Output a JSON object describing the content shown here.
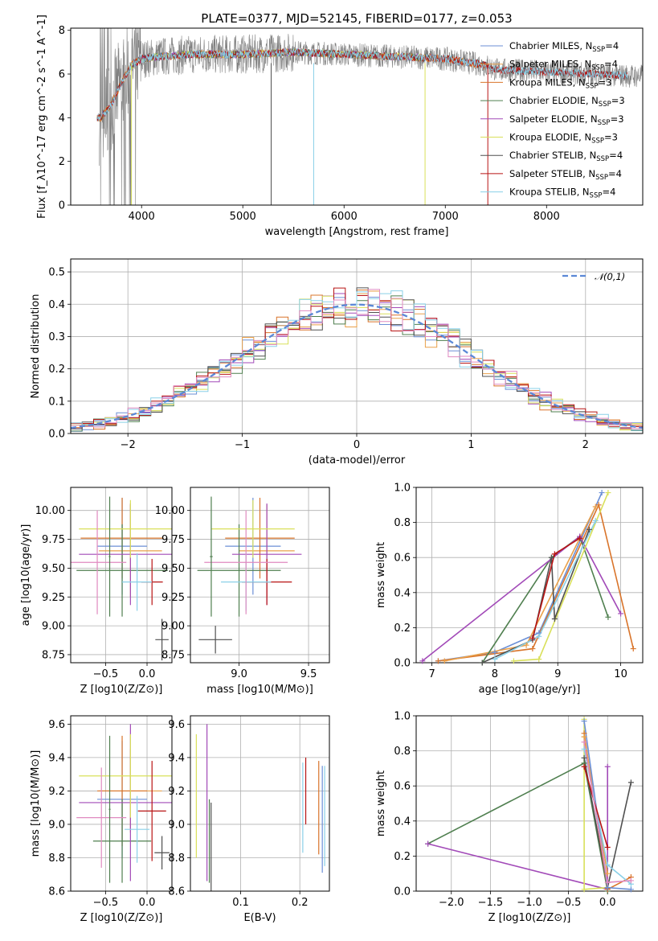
{
  "figure": {
    "title": "PLATE=0377, MJD=52145, FIBERID=0177, z=0.053"
  },
  "colors": {
    "Chabrier MILES": "#6b8fd6",
    "Salpeter MILES": "#e9a04a",
    "Kroupa MILES": "#d9742a",
    "Chabrier ELODIE": "#4f7f4f",
    "Salpeter ELODIE": "#a24ab8",
    "Kroupa ELODIE": "#d9e05a",
    "Chabrier STELIB": "#505050",
    "Salpeter STELIB": "#b81414",
    "Kroupa STELIB": "#8ad0e8",
    "data": "#808080",
    "gauss": "#5b88d6",
    "pink": "#e08ac0"
  },
  "chart_data": [
    {
      "id": "spectrum",
      "type": "line",
      "xlabel": "wavelength [Angstrom, rest frame]",
      "ylabel": "Flux [f_λ10^-17 erg cm^-2 s^-1 A^-1]",
      "xlim": [
        3300,
        8950
      ],
      "ylim": [
        0,
        8.1
      ],
      "xticks": [
        4000,
        5000,
        6000,
        7000,
        8000
      ],
      "yticks": [
        0,
        2,
        4,
        6,
        8
      ],
      "legend_position": "upper right",
      "legend": [
        {
          "name": "Chabrier MILES",
          "nssp": "4"
        },
        {
          "name": "Salpeter MILES",
          "nssp": "4"
        },
        {
          "name": "Kroupa MILES",
          "nssp": "3"
        },
        {
          "name": "Chabrier ELODIE",
          "nssp": "3"
        },
        {
          "name": "Salpeter ELODIE",
          "nssp": "3"
        },
        {
          "name": "Kroupa ELODIE",
          "nssp": "3"
        },
        {
          "name": "Chabrier STELIB",
          "nssp": "4"
        },
        {
          "name": "Salpeter STELIB",
          "nssp": "4"
        },
        {
          "name": "Kroupa STELIB",
          "nssp": "4"
        }
      ],
      "continuum": {
        "x": [
          3600,
          3700,
          3800,
          3900,
          4000,
          4200,
          4500,
          5000,
          5500,
          6000,
          6500,
          7000,
          7400,
          7500,
          8000,
          8500,
          8900
        ],
        "y": [
          4.0,
          4.6,
          5.6,
          6.4,
          6.7,
          6.8,
          6.9,
          6.9,
          7.0,
          6.9,
          6.8,
          6.7,
          6.4,
          6.2,
          6.1,
          6.0,
          5.9
        ]
      }
    },
    {
      "id": "residuals",
      "type": "histogram",
      "xlabel": "(data-model)/error",
      "ylabel": "Normed distribution",
      "xlim": [
        -2.5,
        2.5
      ],
      "ylim": [
        0,
        0.54
      ],
      "xticks": [
        -2,
        -1,
        0,
        1,
        2
      ],
      "yticks": [
        0.0,
        0.1,
        0.2,
        0.3,
        0.4,
        0.5
      ],
      "legend": [
        {
          "name": "𝒩(0,1)"
        }
      ],
      "legend_position": "upper right",
      "bin_width": 0.1
    },
    {
      "id": "age_vs_Z",
      "type": "errorbar",
      "xlabel": "Z [log10(Z/Z⊙)]",
      "ylabel": "age  [log10(age/yr)]",
      "xlim": [
        -0.92,
        0.3
      ],
      "ylim": [
        8.68,
        10.2
      ],
      "xticks": [
        -0.5,
        0.0
      ],
      "yticks": [
        8.75,
        9.0,
        9.25,
        9.5,
        9.75,
        10.0
      ],
      "points": [
        {
          "m": "Chabrier MILES",
          "x": -0.3,
          "xerr": 0.3,
          "y": 9.69,
          "yerr": 0.42
        },
        {
          "m": "Salpeter MILES",
          "x": -0.2,
          "xerr": 0.38,
          "y": 9.65,
          "yerr": 0.4
        },
        {
          "m": "Kroupa MILES",
          "x": -0.3,
          "xerr": 0.5,
          "y": 9.76,
          "yerr": 0.35
        },
        {
          "m": "Chabrier ELODIE",
          "x": -0.3,
          "xerr": 0.55,
          "y": 9.48,
          "yerr": 0.4
        },
        {
          "m": "Salpeter ELODIE",
          "x": -0.2,
          "xerr": 0.62,
          "y": 9.62,
          "yerr": 0.44
        },
        {
          "m": "Kroupa ELODIE",
          "x": -0.2,
          "xerr": 0.62,
          "y": 9.84,
          "yerr": 0.25
        },
        {
          "m": "Chabrier STELIB",
          "x": 0.18,
          "xerr": 0.08,
          "y": 8.88,
          "yerr": 0.18
        },
        {
          "m": "Salpeter STELIB",
          "x": 0.06,
          "xerr": 0.13,
          "y": 9.38,
          "yerr": 0.2
        },
        {
          "m": "Kroupa STELIB",
          "x": -0.12,
          "xerr": 0.18,
          "y": 9.38,
          "yerr": 0.25
        },
        {
          "m": "pink",
          "x": -0.6,
          "xerr": 0.35,
          "y": 9.55,
          "yerr": 0.45
        },
        {
          "m": "Chabrier ELODIE",
          "x": -0.45,
          "xerr": 0.01,
          "y": 9.6,
          "yerr": 0.52
        }
      ]
    },
    {
      "id": "age_vs_mass",
      "type": "errorbar",
      "xlabel": "mass [log10(M/M⊙)]",
      "ylabel": "",
      "xlim": [
        8.65,
        9.65
      ],
      "ylim": [
        8.68,
        10.2
      ],
      "xticks": [
        9.0,
        9.5
      ],
      "yticks": [
        8.75,
        9.0,
        9.25,
        9.5,
        9.75,
        10.0
      ],
      "points": [
        {
          "m": "Chabrier MILES",
          "x": 9.1,
          "xerr": 0.2,
          "y": 9.69,
          "yerr": 0.42
        },
        {
          "m": "Salpeter MILES",
          "x": 9.2,
          "xerr": 0.2,
          "y": 9.65,
          "yerr": 0.4
        },
        {
          "m": "Kroupa MILES",
          "x": 9.15,
          "xerr": 0.25,
          "y": 9.76,
          "yerr": 0.35
        },
        {
          "m": "Chabrier ELODIE",
          "x": 9.0,
          "xerr": 0.3,
          "y": 9.48,
          "yerr": 0.4
        },
        {
          "m": "Salpeter ELODIE",
          "x": 9.2,
          "xerr": 0.25,
          "y": 9.62,
          "yerr": 0.44
        },
        {
          "m": "Kroupa ELODIE",
          "x": 9.1,
          "xerr": 0.3,
          "y": 9.84,
          "yerr": 0.25
        },
        {
          "m": "Chabrier STELIB",
          "x": 8.83,
          "xerr": 0.12,
          "y": 8.88,
          "yerr": 0.12
        },
        {
          "m": "Salpeter STELIB",
          "x": 9.2,
          "xerr": 0.18,
          "y": 9.38,
          "yerr": 0.2
        },
        {
          "m": "Kroupa STELIB",
          "x": 9.05,
          "xerr": 0.18,
          "y": 9.38,
          "yerr": 0.25
        },
        {
          "m": "pink",
          "x": 9.05,
          "xerr": 0.3,
          "y": 9.55,
          "yerr": 0.45
        },
        {
          "m": "Chabrier ELODIE",
          "x": 8.8,
          "xerr": 0.01,
          "y": 9.6,
          "yerr": 0.52
        }
      ]
    },
    {
      "id": "massweight_vs_age",
      "type": "line",
      "xlabel": "age  [log10(age/yr)]",
      "ylabel": "mass weight",
      "xlim": [
        6.75,
        10.35
      ],
      "ylim": [
        0,
        1.0
      ],
      "xticks": [
        7,
        8,
        9,
        10
      ],
      "yticks": [
        0.0,
        0.2,
        0.4,
        0.6,
        0.8,
        1.0
      ],
      "series": [
        {
          "m": "Chabrier MILES",
          "x": [
            7.1,
            8.0,
            8.7,
            9.7
          ],
          "y": [
            0.01,
            0.06,
            0.17,
            0.97
          ]
        },
        {
          "m": "Kroupa MILES",
          "x": [
            7.1,
            8.6,
            9.65,
            10.2
          ],
          "y": [
            0.01,
            0.08,
            0.9,
            0.08
          ]
        },
        {
          "m": "Salpeter MILES",
          "x": [
            7.2,
            8.5,
            9.6
          ],
          "y": [
            0.01,
            0.1,
            0.89
          ]
        },
        {
          "m": "Chabrier ELODIE",
          "x": [
            7.8,
            8.9,
            9.35,
            9.8
          ],
          "y": [
            0.0,
            0.6,
            0.72,
            0.26
          ]
        },
        {
          "m": "Salpeter ELODIE",
          "x": [
            6.85,
            9.35,
            10.0
          ],
          "y": [
            0.01,
            0.72,
            0.28
          ]
        },
        {
          "m": "Kroupa ELODIE",
          "x": [
            8.3,
            8.7,
            9.8
          ],
          "y": [
            0.01,
            0.02,
            0.97
          ]
        },
        {
          "m": "Chabrier STELIB",
          "x": [
            7.8,
            8.6,
            8.9,
            8.95,
            9.5
          ],
          "y": [
            0.0,
            0.13,
            0.6,
            0.25,
            0.76
          ]
        },
        {
          "m": "Kroupa STELIB",
          "x": [
            8.0,
            8.7,
            9.6
          ],
          "y": [
            0.02,
            0.15,
            0.81
          ]
        },
        {
          "m": "Salpeter STELIB",
          "x": [
            8.6,
            8.95,
            9.35
          ],
          "y": [
            0.14,
            0.62,
            0.71
          ]
        }
      ]
    },
    {
      "id": "mass_vs_Z",
      "type": "errorbar",
      "xlabel": "Z [log10(Z/Z⊙)]",
      "ylabel": "mass [log10(M/M⊙)]",
      "xlim": [
        -0.92,
        0.3
      ],
      "ylim": [
        8.6,
        9.65
      ],
      "xticks": [
        -0.5,
        0.0
      ],
      "yticks": [
        8.6,
        8.8,
        9.0,
        9.2,
        9.4,
        9.6
      ],
      "points": [
        {
          "m": "Chabrier MILES",
          "x": -0.3,
          "xerr": 0.3,
          "y": 9.15,
          "yerr": 0.35
        },
        {
          "m": "Salpeter MILES",
          "x": -0.2,
          "xerr": 0.38,
          "y": 9.2,
          "yerr": 0.25
        },
        {
          "m": "Kroupa MILES",
          "x": -0.3,
          "xerr": 0.3,
          "y": 9.2,
          "yerr": 0.33
        },
        {
          "m": "Chabrier ELODIE",
          "x": -0.3,
          "xerr": 0.35,
          "y": 8.9,
          "yerr": 0.25
        },
        {
          "m": "Salpeter ELODIE",
          "x": -0.2,
          "xerr": 0.62,
          "y": 9.13,
          "yerr": 0.47
        },
        {
          "m": "Kroupa ELODIE",
          "x": -0.2,
          "xerr": 0.62,
          "y": 9.29,
          "yerr": 0.25
        },
        {
          "m": "Chabrier STELIB",
          "x": 0.18,
          "xerr": 0.09,
          "y": 8.83,
          "yerr": 0.1
        },
        {
          "m": "Salpeter STELIB",
          "x": 0.06,
          "xerr": 0.17,
          "y": 9.08,
          "yerr": 0.3
        },
        {
          "m": "Kroupa STELIB",
          "x": -0.12,
          "xerr": 0.15,
          "y": 8.97,
          "yerr": 0.2
        },
        {
          "m": "pink",
          "x": -0.55,
          "xerr": 0.3,
          "y": 9.04,
          "yerr": 0.3
        },
        {
          "m": "Chabrier ELODIE",
          "x": -0.45,
          "xerr": 0.01,
          "y": 9.09,
          "yerr": 0.44
        }
      ]
    },
    {
      "id": "mass_vs_EBV",
      "type": "errorbar",
      "xlabel": "E(B-V)",
      "ylabel": "",
      "xlim": [
        0.015,
        0.25
      ],
      "ylim": [
        8.6,
        9.65
      ],
      "xticks": [
        0.1,
        0.2
      ],
      "yticks": [
        8.6,
        8.8,
        9.0,
        9.2,
        9.4,
        9.6
      ],
      "points": [
        {
          "m": "Kroupa ELODIE",
          "x": 0.025,
          "xerr": 0.0,
          "y": 9.17,
          "yerr": 0.37
        },
        {
          "m": "Salpeter ELODIE",
          "x": 0.043,
          "xerr": 0.0,
          "y": 9.13,
          "yerr": 0.47
        },
        {
          "m": "Chabrier ELODIE",
          "x": 0.047,
          "xerr": 0.0,
          "y": 8.9,
          "yerr": 0.25
        },
        {
          "m": "Chabrier STELIB",
          "x": 0.05,
          "xerr": 0.0,
          "y": 8.85,
          "yerr": 0.28
        },
        {
          "m": "Kroupa STELIB",
          "x": 0.205,
          "xerr": 0.0,
          "y": 9.1,
          "yerr": 0.27
        },
        {
          "m": "Salpeter STELIB",
          "x": 0.21,
          "xerr": 0.0,
          "y": 9.2,
          "yerr": 0.2
        },
        {
          "m": "Kroupa MILES",
          "x": 0.232,
          "xerr": 0.0,
          "y": 9.1,
          "yerr": 0.28
        },
        {
          "m": "Chabrier MILES",
          "x": 0.238,
          "xerr": 0.0,
          "y": 9.03,
          "yerr": 0.32
        },
        {
          "m": "Kroupa STELIB",
          "x": 0.242,
          "xerr": 0.0,
          "y": 9.05,
          "yerr": 0.3
        }
      ]
    },
    {
      "id": "massweight_vs_Z",
      "type": "line",
      "xlabel": "Z [log10(Z/Z⊙)]",
      "ylabel": "mass weight",
      "xlim": [
        -2.45,
        0.45
      ],
      "ylim": [
        0,
        1.0
      ],
      "xticks": [
        -2.0,
        -1.5,
        -1.0,
        -0.5,
        0.0
      ],
      "yticks": [
        0.0,
        0.2,
        0.4,
        0.6,
        0.8,
        1.0
      ],
      "series": [
        {
          "m": "Chabrier ELODIE",
          "x": [
            -2.3,
            -0.3,
            0.0
          ],
          "y": [
            0.27,
            0.73,
            0.0
          ]
        },
        {
          "m": "Salpeter ELODIE",
          "x": [
            -2.3,
            0.0,
            0.0
          ],
          "y": [
            0.27,
            0.01,
            0.71
          ]
        },
        {
          "m": "Kroupa ELODIE",
          "x": [
            -0.3,
            -0.3,
            0.0
          ],
          "y": [
            0.98,
            0.01,
            0.02
          ]
        },
        {
          "m": "Chabrier STELIB",
          "x": [
            -0.3,
            0.0,
            0.3
          ],
          "y": [
            0.76,
            0.02,
            0.62
          ]
        },
        {
          "m": "Kroupa MILES",
          "x": [
            -0.3,
            0.0,
            0.3
          ],
          "y": [
            0.9,
            0.01,
            0.08
          ]
        },
        {
          "m": "Salpeter MILES",
          "x": [
            -0.3,
            0.0
          ],
          "y": [
            0.88,
            0.1
          ]
        },
        {
          "m": "Chabrier MILES",
          "x": [
            -0.3,
            0.0,
            0.3
          ],
          "y": [
            0.97,
            0.02,
            0.01
          ]
        },
        {
          "m": "Kroupa STELIB",
          "x": [
            -0.3,
            0.0,
            0.3
          ],
          "y": [
            0.81,
            0.15,
            0.04
          ]
        },
        {
          "m": "Salpeter STELIB",
          "x": [
            -0.3,
            0.0
          ],
          "y": [
            0.71,
            0.25
          ]
        },
        {
          "m": "pink",
          "x": [
            -0.3,
            0.0,
            0.3
          ],
          "y": [
            0.85,
            0.05,
            0.06
          ]
        }
      ]
    }
  ]
}
